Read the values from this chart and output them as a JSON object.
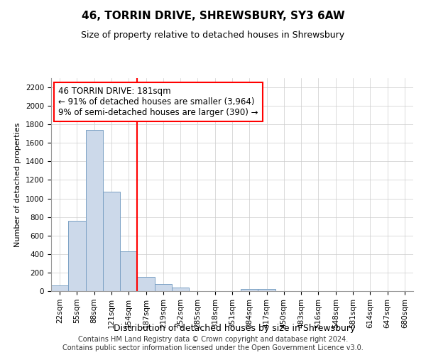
{
  "title1": "46, TORRIN DRIVE, SHREWSBURY, SY3 6AW",
  "title2": "Size of property relative to detached houses in Shrewsbury",
  "xlabel": "Distribution of detached houses by size in Shrewsbury",
  "ylabel": "Number of detached properties",
  "bins": [
    "22sqm",
    "55sqm",
    "88sqm",
    "121sqm",
    "154sqm",
    "187sqm",
    "219sqm",
    "252sqm",
    "285sqm",
    "318sqm",
    "351sqm",
    "384sqm",
    "417sqm",
    "450sqm",
    "483sqm",
    "516sqm",
    "548sqm",
    "581sqm",
    "614sqm",
    "647sqm",
    "680sqm"
  ],
  "values": [
    60,
    760,
    1740,
    1075,
    430,
    155,
    80,
    40,
    0,
    0,
    0,
    25,
    20,
    0,
    0,
    0,
    0,
    0,
    0,
    0,
    0
  ],
  "bar_color": "#ccd9ea",
  "bar_edge_color": "#7aa0c4",
  "vline_color": "red",
  "vline_bin_index": 5,
  "annotation_text": "46 TORRIN DRIVE: 181sqm\n← 91% of detached houses are smaller (3,964)\n9% of semi-detached houses are larger (390) →",
  "annotation_box_color": "white",
  "annotation_box_edge_color": "red",
  "ylim": [
    0,
    2300
  ],
  "yticks": [
    0,
    200,
    400,
    600,
    800,
    1000,
    1200,
    1400,
    1600,
    1800,
    2000,
    2200
  ],
  "grid_color": "#cccccc",
  "footnote": "Contains HM Land Registry data © Crown copyright and database right 2024.\nContains public sector information licensed under the Open Government Licence v3.0.",
  "bg_color": "#ffffff",
  "title1_fontsize": 11,
  "title2_fontsize": 9,
  "xlabel_fontsize": 9,
  "ylabel_fontsize": 8,
  "tick_fontsize": 7.5,
  "footnote_fontsize": 7
}
